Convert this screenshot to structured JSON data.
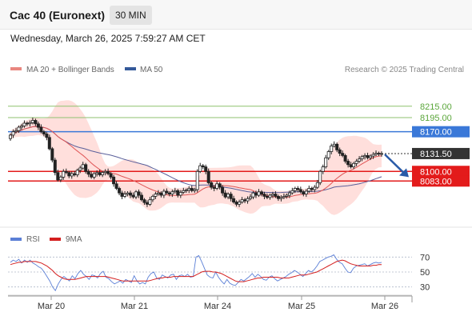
{
  "header": {
    "title": "Cac 40 (Euronext)",
    "timeframe": "30 MIN"
  },
  "datetime": "Wednesday, March 26, 2025 7:59:27 AM CET",
  "credit": "Research © 2025 Trading Central",
  "colors": {
    "up_candle": "#ffffff",
    "down_candle": "#222222",
    "ma20": "#e05555",
    "bollinger_fill": "#ffd9d6",
    "ma50": "#5a5f9a",
    "resistance": "#8dc26f",
    "pivot": "#3a78d8",
    "support": "#e31b1b",
    "last_price": "#333333",
    "rsi": "#5b7fd6",
    "rsi_ma": "#d41f1f",
    "arrow": "#2a5ba8"
  },
  "chart_data": [
    {
      "type": "candlestick",
      "legend": [
        "MA 20 + Bollinger Bands",
        "MA 50"
      ],
      "ylim": [
        8010,
        8250
      ],
      "x_tick_labels": [
        "Mar 20",
        "Mar 21",
        "Mar 24",
        "Mar 25",
        "Mar 26"
      ],
      "levels": [
        {
          "label": "8215.00",
          "value": 8215,
          "kind": "resistance"
        },
        {
          "label": "8195.00",
          "value": 8195,
          "kind": "resistance"
        },
        {
          "label": "8170.00",
          "value": 8170,
          "kind": "pivot"
        },
        {
          "label": "8100.00",
          "value": 8100,
          "kind": "support"
        },
        {
          "label": "8083.00",
          "value": 8083,
          "kind": "support"
        }
      ],
      "last_price": {
        "label": "8131.50",
        "value": 8131.5
      },
      "forecast_arrow": {
        "from": 8130,
        "to": 8090
      },
      "close": [
        8164,
        8170,
        8172,
        8178,
        8180,
        8185,
        8184,
        8186,
        8190,
        8184,
        8178,
        8170,
        8166,
        8160,
        8140,
        8120,
        8098,
        8085,
        8090,
        8100,
        8098,
        8092,
        8096,
        8094,
        8102,
        8106,
        8112,
        8100,
        8095,
        8090,
        8096,
        8098,
        8094,
        8098,
        8100,
        8096,
        8090,
        8078,
        8070,
        8062,
        8056,
        8060,
        8062,
        8058,
        8055,
        8064,
        8058,
        8050,
        8045,
        8042,
        8050,
        8056,
        8060,
        8062,
        8058,
        8065,
        8062,
        8060,
        8064,
        8066,
        8058,
        8063,
        8066,
        8067,
        8070,
        8066,
        8068,
        8100,
        8110,
        8108,
        8100,
        8080,
        8072,
        8070,
        8078,
        8072,
        8062,
        8055,
        8060,
        8052,
        8046,
        8042,
        8046,
        8050,
        8048,
        8052,
        8055,
        8062,
        8058,
        8064,
        8060,
        8056,
        8054,
        8058,
        8060,
        8056,
        8052,
        8054,
        8056,
        8058,
        8062,
        8066,
        8070,
        8068,
        8064,
        8060,
        8065,
        8070,
        8068,
        8072,
        8080,
        8100,
        8108,
        8124,
        8135,
        8145,
        8148,
        8138,
        8132,
        8128,
        8118,
        8112,
        8108,
        8114,
        8118,
        8122,
        8126,
        8128,
        8124,
        8127,
        8130,
        8132,
        8131,
        8131.5
      ]
    },
    {
      "type": "line",
      "title": "RSI",
      "legend": [
        "RSI",
        "9MA"
      ],
      "ylim": [
        20,
        80
      ],
      "y_ticks": [
        70,
        50,
        30
      ],
      "series": [
        {
          "name": "RSI",
          "values": [
            63,
            66,
            64,
            67,
            62,
            66,
            63,
            66,
            62,
            60,
            57,
            55,
            50,
            44,
            38,
            30,
            25,
            34,
            40,
            44,
            41,
            38,
            45,
            41,
            48,
            52,
            47,
            44,
            40,
            46,
            45,
            42,
            48,
            51,
            43,
            41,
            37,
            34,
            36,
            38,
            35,
            40,
            38,
            36,
            45,
            38,
            34,
            36,
            34,
            43,
            48,
            50,
            42,
            40,
            46,
            44,
            42,
            46,
            47,
            40,
            45,
            46,
            44,
            47,
            43,
            44,
            70,
            72,
            64,
            55,
            46,
            43,
            42,
            50,
            43,
            38,
            34,
            40,
            35,
            33,
            32,
            36,
            40,
            38,
            41,
            44,
            48,
            43,
            47,
            44,
            40,
            39,
            43,
            45,
            41,
            38,
            40,
            42,
            44,
            47,
            49,
            52,
            50,
            47,
            44,
            48,
            52,
            50,
            53,
            58,
            64,
            66,
            68,
            70,
            71,
            73,
            67,
            63,
            61,
            55,
            50,
            49,
            55,
            58,
            59,
            60,
            61,
            58,
            60,
            62,
            63,
            62,
            63
          ]
        },
        {
          "name": "9MA",
          "values": [
            60,
            61,
            62,
            63,
            63,
            64,
            64,
            64,
            64,
            64,
            63,
            62,
            60,
            58,
            55,
            52,
            48,
            45,
            43,
            41,
            40,
            40,
            40,
            40,
            41,
            42,
            43,
            44,
            44,
            44,
            44,
            44,
            44,
            44,
            44,
            43,
            42,
            41,
            40,
            39,
            38,
            38,
            38,
            38,
            38,
            38,
            38,
            38,
            38,
            38,
            39,
            40,
            41,
            42,
            42,
            43,
            43,
            43,
            44,
            44,
            44,
            44,
            44,
            44,
            44,
            44,
            46,
            48,
            50,
            51,
            51,
            51,
            50,
            50,
            49,
            48,
            46,
            44,
            42,
            40,
            38,
            37,
            37,
            37,
            38,
            39,
            40,
            41,
            42,
            42,
            43,
            43,
            43,
            43,
            43,
            43,
            42,
            42,
            42,
            42,
            43,
            44,
            45,
            46,
            46,
            46,
            47,
            48,
            49,
            50,
            52,
            54,
            56,
            58,
            60,
            62,
            64,
            65,
            66,
            65,
            63,
            61,
            60,
            59,
            58,
            58,
            58,
            58,
            58,
            59,
            59,
            60,
            60
          ]
        }
      ]
    }
  ]
}
